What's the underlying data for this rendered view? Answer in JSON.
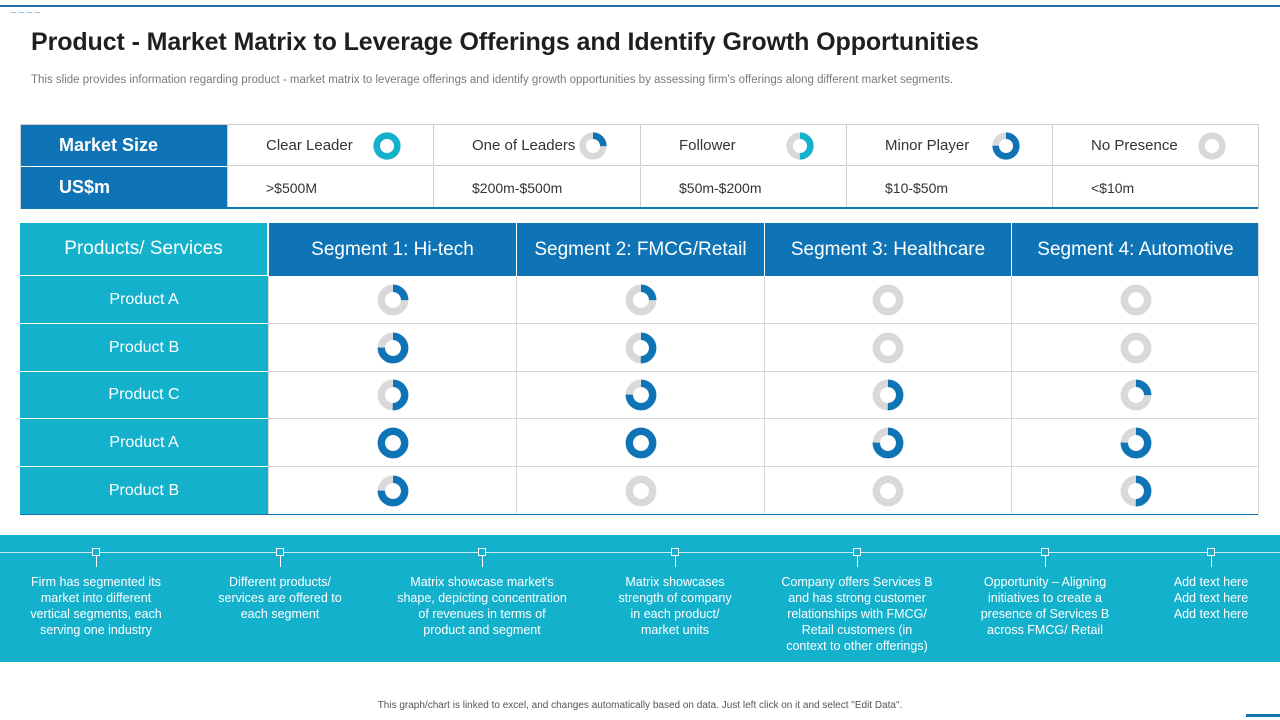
{
  "title": "Product - Market Matrix to Leverage Offerings and Identify Growth Opportunities",
  "subtitle": "This slide provides information regarding product - market matrix to leverage offerings and identify growth opportunities by assessing firm's offerings along different market segments.",
  "legend": {
    "row1_label": "Market Size",
    "row2_label": "US$m",
    "colors": {
      "primary": "#0f74b6",
      "accent": "#14b1cd",
      "empty": "#d9d9d9"
    },
    "items": [
      {
        "label": "Clear Leader",
        "value": ">$500M",
        "fill": 1.0,
        "color": "#14b1cd"
      },
      {
        "label": "One of Leaders",
        "value": "$200m-$500m",
        "fill": 0.25,
        "color": "#0f74b6"
      },
      {
        "label": "Follower",
        "value": "$50m-$200m",
        "fill": 0.5,
        "color": "#14b1cd"
      },
      {
        "label": "Minor Player",
        "value": "$10-$50m",
        "fill": 0.75,
        "color": "#0f74b6"
      },
      {
        "label": "No Presence",
        "value": "<$10m",
        "fill": 0.0,
        "color": "#d9d9d9"
      }
    ]
  },
  "matrix": {
    "corner_label": "Products/ Services",
    "segments": [
      "Segment 1: Hi-tech",
      "Segment 2: FMCG/Retail",
      "Segment 3: Healthcare",
      "Segment 4: Automotive"
    ],
    "rows": [
      {
        "label": "Product A",
        "fills": [
          0.25,
          0.25,
          0.0,
          0.0
        ]
      },
      {
        "label": "Product B",
        "fills": [
          0.75,
          0.5,
          0.0,
          0.0
        ]
      },
      {
        "label": "Product C",
        "fills": [
          0.5,
          0.75,
          0.5,
          0.25
        ]
      },
      {
        "label": "Product A",
        "fills": [
          1.0,
          1.0,
          0.75,
          0.75
        ]
      },
      {
        "label": "Product B",
        "fills": [
          0.75,
          0.0,
          0.0,
          0.5
        ]
      }
    ]
  },
  "band": {
    "items": [
      "Firm has segmented its market into different vertical segments, each serving one industry",
      "Different products/ services are offered to each segment",
      "Matrix showcase market's shape, depicting concentration of revenues in terms of product and segment",
      "Matrix showcases strength of company in each product/ market units",
      "Company offers Services B and has strong customer relationships with FMCG/ Retail customers (in context to other offerings)",
      "Opportunity – Aligning initiatives to create a presence of Services B across FMCG/ Retail",
      "Add text here Add text here Add text here"
    ],
    "lines": [
      [
        "Firm has segmented its",
        "market into different",
        "vertical segments, each",
        "serving one industry"
      ],
      [
        "Different products/",
        "services are offered to",
        "each segment"
      ],
      [
        "Matrix showcase market's",
        "shape, depicting concentration",
        "of revenues in terms of",
        "product and segment"
      ],
      [
        "Matrix showcases",
        "strength of company",
        "in each product/",
        "market units"
      ],
      [
        "Company offers Services B",
        "and has strong customer",
        "relationships with FMCG/",
        "Retail customers (in",
        "context to other offerings)"
      ],
      [
        "Opportunity – Aligning",
        "initiatives to create a",
        "presence of Services B",
        "across FMCG/ Retail"
      ],
      [
        "Add text here",
        "Add text here",
        "Add text here"
      ]
    ]
  },
  "footnote": "This graph/chart is linked to excel, and changes automatically based on data. Just left click on it and select \"Edit Data\"."
}
